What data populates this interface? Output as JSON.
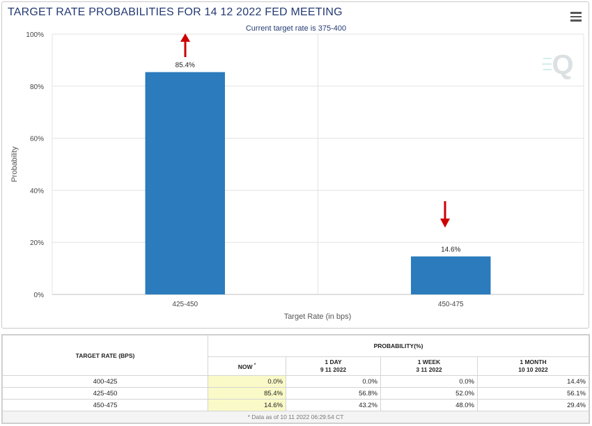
{
  "title": "TARGET RATE PROBABILITIES FOR 14 12 2022 FED MEETING",
  "icons": {
    "menu": "hamburger-menu-icon",
    "logo": "q-logo-icon",
    "arrow_up": "red-up-arrow-icon",
    "arrow_down": "red-down-arrow-icon"
  },
  "colors": {
    "bar": "#2b7bbd",
    "arrow": "#cc0000",
    "title": "#243a74",
    "highlight": "#fafac8"
  },
  "chart_data": {
    "type": "bar",
    "title": "TARGET RATE PROBABILITIES FOR 14 12 2022 FED MEETING",
    "subtitle": "Current target rate is 375-400",
    "categories": [
      "425-450",
      "450-475"
    ],
    "values": [
      85.4,
      14.6
    ],
    "data_labels": [
      "85.4%",
      "14.6%"
    ],
    "xlabel": "Target Rate (in bps)",
    "ylabel": "Probability",
    "ylim": [
      0,
      100
    ],
    "yticks": [
      "0%",
      "20%",
      "40%",
      "60%",
      "80%",
      "100%"
    ],
    "grid": true,
    "legend": "none"
  },
  "table": {
    "col_target": "TARGET RATE (BPS)",
    "col_probability": "PROBABILITY(%)",
    "sub_now": "NOW",
    "now_mark": "*",
    "sub_1day": "1 DAY",
    "sub_1day_date": "9 11 2022",
    "sub_1week": "1 WEEK",
    "sub_1week_date": "3 11 2022",
    "sub_1month": "1 MONTH",
    "sub_1month_date": "10 10 2022",
    "rows": [
      {
        "rate": "400-425",
        "now": "0.0%",
        "day": "0.0%",
        "week": "0.0%",
        "month": "14.4%"
      },
      {
        "rate": "425-450",
        "now": "85.4%",
        "day": "56.8%",
        "week": "52.0%",
        "month": "56.1%"
      },
      {
        "rate": "450-475",
        "now": "14.6%",
        "day": "43.2%",
        "week": "48.0%",
        "month": "29.4%"
      }
    ],
    "footnote": "* Data as of 10 11 2022 06:29:54 CT"
  }
}
